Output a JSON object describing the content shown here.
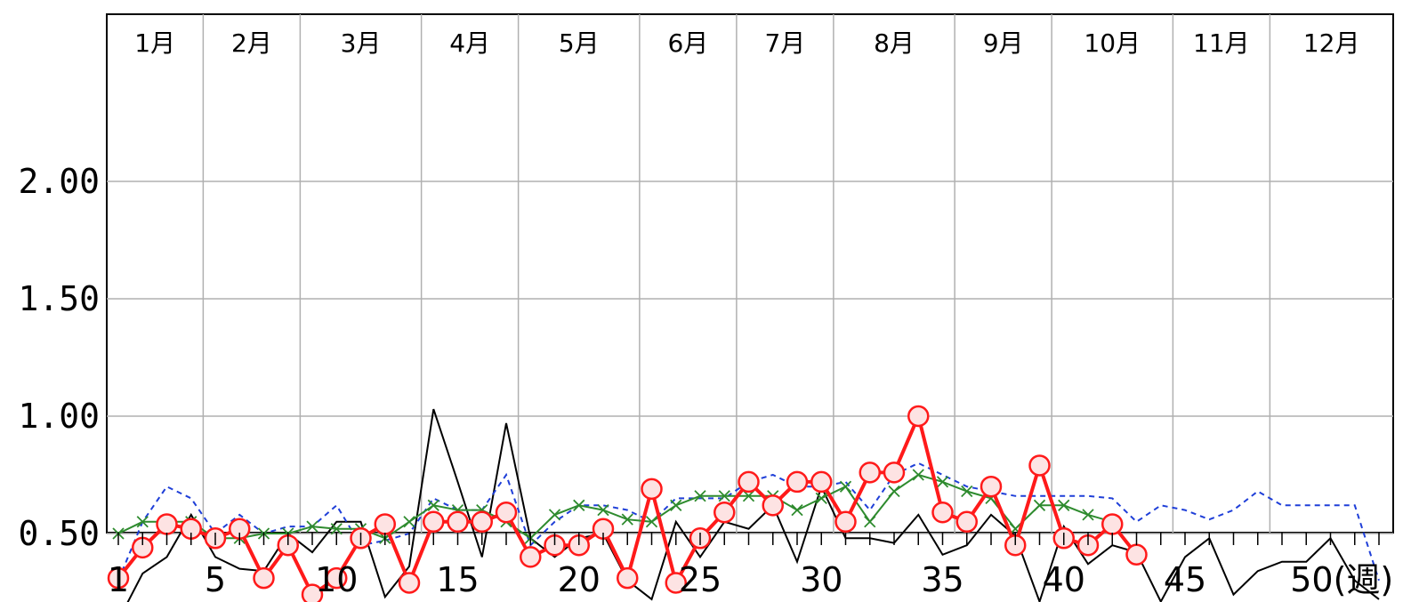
{
  "chart_data": {
    "type": "line",
    "title": "",
    "xlabel": "",
    "ylabel": "",
    "x_unit_label": "(週)",
    "xlim": [
      1,
      53
    ],
    "ylim": [
      0,
      2.2
    ],
    "yticks": [
      "0.50",
      "1.00",
      "1.50",
      "2.00"
    ],
    "xticks": [
      1,
      5,
      10,
      15,
      20,
      25,
      30,
      35,
      40,
      45,
      50
    ],
    "grid": true,
    "legend": "none",
    "months": [
      {
        "label": "1月",
        "start_week": 1
      },
      {
        "label": "2月",
        "start_week": 5
      },
      {
        "label": "3月",
        "start_week": 9
      },
      {
        "label": "4月",
        "start_week": 14
      },
      {
        "label": "5月",
        "start_week": 18
      },
      {
        "label": "6月",
        "start_week": 23
      },
      {
        "label": "7月",
        "start_week": 27
      },
      {
        "label": "8月",
        "start_week": 31
      },
      {
        "label": "9月",
        "start_week": 36
      },
      {
        "label": "10月",
        "start_week": 40
      },
      {
        "label": "11月",
        "start_week": 45
      },
      {
        "label": "12月",
        "start_week": 49
      }
    ],
    "series": [
      {
        "color": "#000000",
        "style": "solid",
        "values": [
          0.13,
          0.33,
          0.4,
          0.58,
          0.4,
          0.35,
          0.34,
          0.5,
          0.42,
          0.55,
          0.55,
          0.23,
          0.36,
          1.03,
          0.72,
          0.4,
          0.97,
          0.48,
          0.4,
          0.48,
          0.5,
          0.3,
          0.22,
          0.55,
          0.4,
          0.55,
          0.52,
          0.62,
          0.38,
          0.7,
          0.48,
          0.48,
          0.46,
          0.58,
          0.41,
          0.45,
          0.58,
          0.49,
          0.21,
          0.53,
          0.37,
          0.45,
          0.42,
          0.21,
          0.4,
          0.48,
          0.24,
          0.34,
          0.38,
          0.38,
          0.48,
          0.3,
          0.22
        ]
      },
      {
        "color": "#1f3fd8",
        "style": "dashed",
        "values": [
          0.3,
          0.55,
          0.7,
          0.65,
          0.5,
          0.58,
          0.5,
          0.53,
          0.53,
          0.62,
          0.45,
          0.47,
          0.5,
          0.65,
          0.6,
          0.6,
          0.75,
          0.45,
          0.55,
          0.62,
          0.62,
          0.6,
          0.55,
          0.65,
          0.65,
          0.65,
          0.72,
          0.75,
          0.7,
          0.7,
          0.72,
          0.6,
          0.75,
          0.8,
          0.75,
          0.7,
          0.68,
          0.66,
          0.66,
          0.66,
          0.66,
          0.65,
          0.55,
          0.62,
          0.6,
          0.56,
          0.6,
          0.68,
          0.62,
          0.62,
          0.62,
          0.62,
          0.3
        ]
      },
      {
        "color": "#2e8b2e",
        "style": "solid",
        "marker": "x",
        "values": [
          0.5,
          0.55,
          0.55,
          0.55,
          0.48,
          0.48,
          0.5,
          0.5,
          0.53,
          0.52,
          0.52,
          0.48,
          0.55,
          0.62,
          0.6,
          0.6,
          0.55,
          0.48,
          0.58,
          0.62,
          0.6,
          0.56,
          0.55,
          0.62,
          0.66,
          0.66,
          0.66,
          0.66,
          0.6,
          0.65,
          0.7,
          0.55,
          0.68,
          0.75,
          0.72,
          0.68,
          0.65,
          0.52,
          0.62,
          0.62,
          0.58,
          0.55
        ]
      },
      {
        "color": "#ff1a1a",
        "style": "solid",
        "marker": "circle",
        "values": [
          0.31,
          0.44,
          0.54,
          0.52,
          0.48,
          0.52,
          0.31,
          0.45,
          0.24,
          0.31,
          0.48,
          0.54,
          0.29,
          0.55,
          0.55,
          0.55,
          0.59,
          0.4,
          0.45,
          0.45,
          0.52,
          0.31,
          0.69,
          0.29,
          0.48,
          0.59,
          0.72,
          0.62,
          0.72,
          0.72,
          0.55,
          0.76,
          0.76,
          1.0,
          0.59,
          0.55,
          0.7,
          0.45,
          0.79,
          0.48,
          0.45,
          0.54,
          0.41
        ]
      }
    ]
  }
}
